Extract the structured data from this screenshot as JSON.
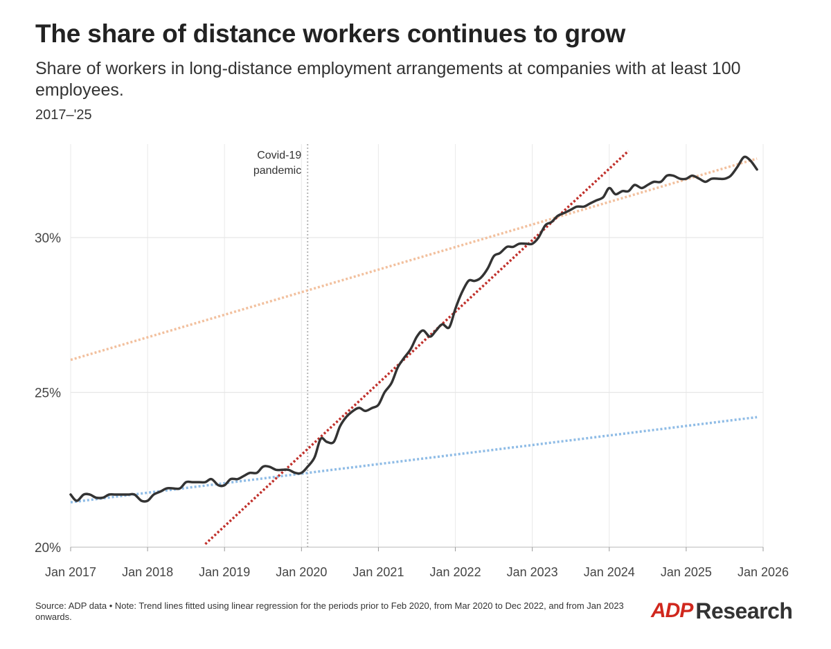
{
  "header": {
    "title": "The share of distance workers continues to grow",
    "subtitle": "Share of workers in long-distance employment arrangements at companies with at least 100 employees.",
    "dateline": "2017–'25"
  },
  "footer": {
    "note": "Source: ADP data • Note: Trend lines fitted using linear regression for the periods prior to Feb 2020, from Mar 2020 to Dec 2022, and from Jan 2023 onwards."
  },
  "logo": {
    "adp": "ADP",
    "research": "Research"
  },
  "chart_data": {
    "type": "line",
    "xlim": [
      2017.0,
      2026.0
    ],
    "ylim": [
      20,
      33
    ],
    "x_ticks": [
      {
        "value": 2017,
        "label": "Jan 2017"
      },
      {
        "value": 2018,
        "label": "Jan 2018"
      },
      {
        "value": 2019,
        "label": "Jan 2019"
      },
      {
        "value": 2020,
        "label": "Jan 2020"
      },
      {
        "value": 2021,
        "label": "Jan 2021"
      },
      {
        "value": 2022,
        "label": "Jan 2022"
      },
      {
        "value": 2023,
        "label": "Jan 2023"
      },
      {
        "value": 2024,
        "label": "Jan 2024"
      },
      {
        "value": 2025,
        "label": "Jan 2025"
      },
      {
        "value": 2026,
        "label": "Jan 2026"
      }
    ],
    "y_ticks": [
      {
        "value": 20,
        "label": "20%"
      },
      {
        "value": 25,
        "label": "25%"
      },
      {
        "value": 30,
        "label": "30%"
      }
    ],
    "grid": true,
    "annotation": {
      "x": 2020.08,
      "lines": [
        "Covid-19",
        "pandemic"
      ]
    },
    "series": [
      {
        "color": "#333333",
        "points": [
          [
            2017.0,
            21.7
          ],
          [
            2017.08,
            21.5
          ],
          [
            2017.17,
            21.7
          ],
          [
            2017.25,
            21.7
          ],
          [
            2017.33,
            21.6
          ],
          [
            2017.42,
            21.6
          ],
          [
            2017.5,
            21.7
          ],
          [
            2017.58,
            21.7
          ],
          [
            2017.67,
            21.7
          ],
          [
            2017.75,
            21.7
          ],
          [
            2017.83,
            21.7
          ],
          [
            2017.92,
            21.5
          ],
          [
            2018.0,
            21.5
          ],
          [
            2018.08,
            21.7
          ],
          [
            2018.17,
            21.8
          ],
          [
            2018.25,
            21.9
          ],
          [
            2018.33,
            21.9
          ],
          [
            2018.42,
            21.9
          ],
          [
            2018.5,
            22.1
          ],
          [
            2018.58,
            22.1
          ],
          [
            2018.67,
            22.1
          ],
          [
            2018.75,
            22.1
          ],
          [
            2018.83,
            22.2
          ],
          [
            2018.92,
            22.0
          ],
          [
            2019.0,
            22.0
          ],
          [
            2019.08,
            22.2
          ],
          [
            2019.17,
            22.2
          ],
          [
            2019.25,
            22.3
          ],
          [
            2019.33,
            22.4
          ],
          [
            2019.42,
            22.4
          ],
          [
            2019.5,
            22.6
          ],
          [
            2019.58,
            22.6
          ],
          [
            2019.67,
            22.5
          ],
          [
            2019.75,
            22.5
          ],
          [
            2019.83,
            22.5
          ],
          [
            2019.92,
            22.4
          ],
          [
            2020.0,
            22.4
          ],
          [
            2020.08,
            22.6
          ],
          [
            2020.17,
            22.9
          ],
          [
            2020.25,
            23.5
          ],
          [
            2020.33,
            23.4
          ],
          [
            2020.42,
            23.4
          ],
          [
            2020.5,
            23.9
          ],
          [
            2020.58,
            24.2
          ],
          [
            2020.67,
            24.4
          ],
          [
            2020.75,
            24.5
          ],
          [
            2020.83,
            24.4
          ],
          [
            2020.92,
            24.5
          ],
          [
            2021.0,
            24.6
          ],
          [
            2021.08,
            25.0
          ],
          [
            2021.17,
            25.3
          ],
          [
            2021.25,
            25.8
          ],
          [
            2021.33,
            26.1
          ],
          [
            2021.42,
            26.4
          ],
          [
            2021.5,
            26.8
          ],
          [
            2021.58,
            27.0
          ],
          [
            2021.67,
            26.8
          ],
          [
            2021.75,
            27.0
          ],
          [
            2021.83,
            27.2
          ],
          [
            2021.92,
            27.1
          ],
          [
            2022.0,
            27.7
          ],
          [
            2022.08,
            28.2
          ],
          [
            2022.17,
            28.6
          ],
          [
            2022.25,
            28.6
          ],
          [
            2022.33,
            28.7
          ],
          [
            2022.42,
            29.0
          ],
          [
            2022.5,
            29.4
          ],
          [
            2022.58,
            29.5
          ],
          [
            2022.67,
            29.7
          ],
          [
            2022.75,
            29.7
          ],
          [
            2022.83,
            29.8
          ],
          [
            2022.92,
            29.8
          ],
          [
            2023.0,
            29.8
          ],
          [
            2023.08,
            30.0
          ],
          [
            2023.17,
            30.4
          ],
          [
            2023.25,
            30.5
          ],
          [
            2023.33,
            30.7
          ],
          [
            2023.42,
            30.8
          ],
          [
            2023.5,
            30.9
          ],
          [
            2023.58,
            31.0
          ],
          [
            2023.67,
            31.0
          ],
          [
            2023.75,
            31.1
          ],
          [
            2023.83,
            31.2
          ],
          [
            2023.92,
            31.3
          ],
          [
            2024.0,
            31.6
          ],
          [
            2024.08,
            31.4
          ],
          [
            2024.17,
            31.5
          ],
          [
            2024.25,
            31.5
          ],
          [
            2024.33,
            31.7
          ],
          [
            2024.42,
            31.6
          ],
          [
            2024.5,
            31.7
          ],
          [
            2024.58,
            31.8
          ],
          [
            2024.67,
            31.8
          ],
          [
            2024.75,
            32.0
          ],
          [
            2024.83,
            32.0
          ],
          [
            2024.92,
            31.9
          ],
          [
            2025.0,
            31.9
          ],
          [
            2025.08,
            32.0
          ],
          [
            2025.17,
            31.9
          ],
          [
            2025.25,
            31.8
          ],
          [
            2025.33,
            31.9
          ],
          [
            2025.42,
            31.9
          ],
          [
            2025.5,
            31.9
          ],
          [
            2025.58,
            32.0
          ],
          [
            2025.67,
            32.3
          ],
          [
            2025.75,
            32.6
          ],
          [
            2025.83,
            32.5
          ],
          [
            2025.92,
            32.2
          ]
        ]
      }
    ],
    "trend_lines": [
      {
        "color": "#8fbce6",
        "from": [
          2017.0,
          21.45
        ],
        "to": [
          2025.92,
          24.2
        ]
      },
      {
        "color": "#c0302b",
        "from": [
          2018.75,
          20.1
        ],
        "to": [
          2024.25,
          32.8
        ]
      },
      {
        "color": "#f2c09e",
        "from": [
          2017.0,
          26.05
        ],
        "to": [
          2025.92,
          32.55
        ]
      }
    ]
  }
}
